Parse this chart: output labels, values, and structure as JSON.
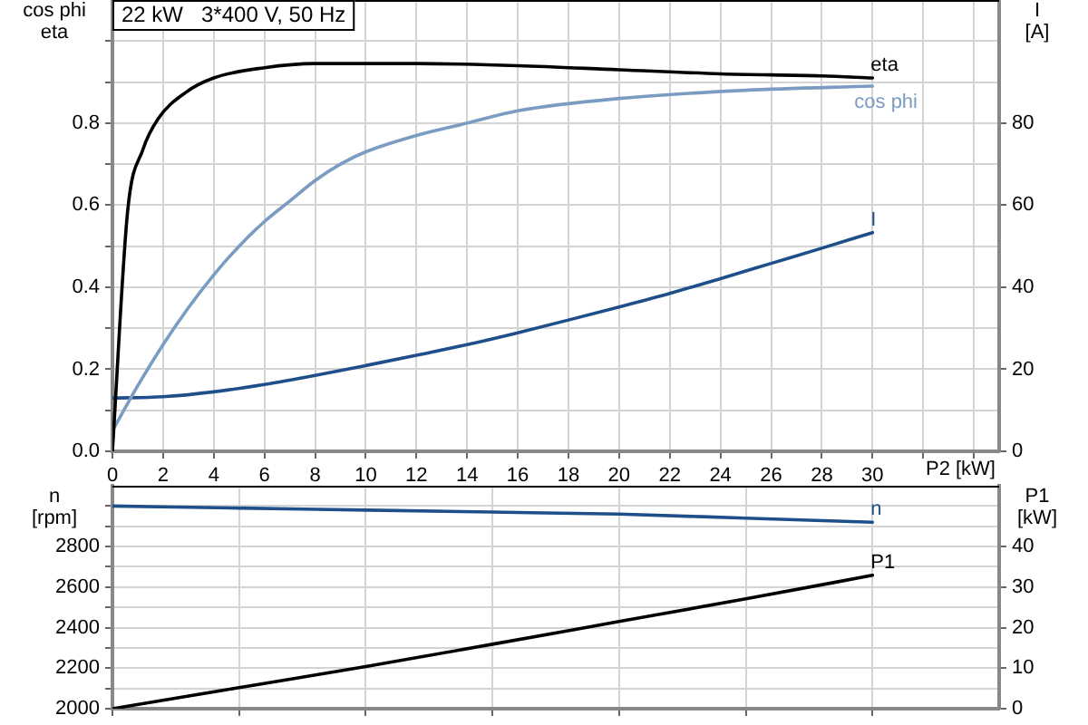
{
  "chart_data": [
    {
      "type": "line",
      "title": "22 kW   3*400 V, 50 Hz",
      "xlabel": "P2 [kW]",
      "ylabel": "cos phi\neta",
      "y2label": "I\n[A]",
      "grid": true,
      "xlim": [
        0,
        35
      ],
      "xticks": [
        0,
        2,
        4,
        6,
        8,
        10,
        12,
        14,
        16,
        18,
        20,
        22,
        24,
        26,
        28,
        30,
        {
          "value": 32,
          "label": null
        },
        {
          "value": 34,
          "label": null
        }
      ],
      "ylim": [
        0,
        1.1
      ],
      "yticks": [
        {
          "value": 0,
          "label": "0.0"
        },
        {
          "value": 0.1,
          "label": null
        },
        0.2,
        {
          "value": 0.3,
          "label": null
        },
        0.4,
        {
          "value": 0.5,
          "label": null
        },
        0.6,
        {
          "value": 0.7,
          "label": null
        },
        0.8,
        {
          "value": 0.9,
          "label": null
        },
        {
          "value": 1.0,
          "label": null
        }
      ],
      "y2lim": [
        0,
        110
      ],
      "y2ticks": [
        0,
        20,
        40,
        60,
        80
      ],
      "series": [
        {
          "name": "eta",
          "color": "#000000",
          "x": [
            0,
            0.6,
            1.2,
            1.8,
            2.9,
            4,
            6,
            8,
            10,
            12,
            16,
            20,
            24,
            28,
            30
          ],
          "values": [
            0,
            0.585,
            0.735,
            0.81,
            0.875,
            0.91,
            0.935,
            0.945,
            0.945,
            0.945,
            0.94,
            0.93,
            0.92,
            0.915,
            0.91
          ]
        },
        {
          "name": "cos phi",
          "color": "#7a9cc2",
          "x": [
            0,
            1,
            2,
            3,
            4,
            5,
            6,
            7,
            8,
            9,
            10,
            12,
            14,
            16,
            20,
            25,
            30
          ],
          "values": [
            0.05,
            0.16,
            0.26,
            0.35,
            0.43,
            0.5,
            0.56,
            0.61,
            0.66,
            0.7,
            0.73,
            0.77,
            0.8,
            0.83,
            0.86,
            0.88,
            0.89
          ]
        },
        {
          "name": "I",
          "color": "#1f4f8a",
          "axis": "y2",
          "x": [
            0,
            2,
            4,
            6,
            8,
            10,
            12,
            14,
            16,
            18,
            20,
            22,
            24,
            26,
            28,
            30
          ],
          "values": [
            13,
            13.3,
            14.5,
            16.3,
            18.5,
            20.9,
            23.4,
            26,
            28.9,
            32,
            35.2,
            38.5,
            42.1,
            45.8,
            49.5,
            53.3
          ]
        }
      ]
    },
    {
      "type": "line",
      "ylabel": "n\n[rpm]",
      "y2label": "P1\n[kW]",
      "grid": true,
      "tick_labels": "y",
      "xlim": [
        0,
        35
      ],
      "xticks": [
        0,
        5,
        10,
        15,
        20,
        25,
        30
      ],
      "ylim": [
        2000,
        3100
      ],
      "yticks": [
        2000,
        {
          "value": 2100,
          "label": null
        },
        2200,
        {
          "value": 2300,
          "label": null
        },
        2400,
        {
          "value": 2500,
          "label": null
        },
        2600,
        {
          "value": 2700,
          "label": null
        },
        2800,
        {
          "value": 2900,
          "label": null
        },
        {
          "value": 3000,
          "label": null
        }
      ],
      "y2lim": [
        0,
        55
      ],
      "y2ticks": [
        0,
        10,
        20,
        30,
        40
      ],
      "series": [
        {
          "name": "n",
          "color": "#1f4f8a",
          "x": [
            0,
            5,
            10,
            15,
            20,
            25,
            30
          ],
          "values": [
            3000,
            2990,
            2980,
            2970,
            2960,
            2940,
            2920
          ]
        },
        {
          "name": "P1",
          "color": "#000000",
          "axis": "y2",
          "x": [
            0,
            5,
            10,
            15,
            20,
            25,
            30
          ],
          "values": [
            0,
            5.2,
            10.4,
            15.9,
            21.5,
            27.1,
            32.9
          ]
        }
      ]
    }
  ]
}
